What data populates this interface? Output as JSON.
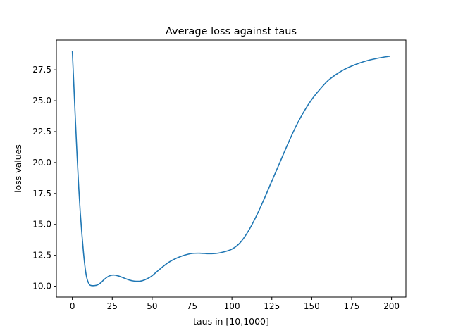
{
  "chart_data": {
    "type": "line",
    "title": "Average loss against taus",
    "xlabel": "taus in [10,1000]",
    "ylabel": "loss values",
    "xlim": [
      -10,
      209
    ],
    "ylim": [
      9.12,
      29.9
    ],
    "xticks": [
      0,
      25,
      50,
      75,
      100,
      125,
      150,
      175,
      200
    ],
    "xtick_labels": [
      "0",
      "25",
      "50",
      "75",
      "100",
      "125",
      "150",
      "175",
      "200"
    ],
    "yticks": [
      10.0,
      12.5,
      15.0,
      17.5,
      20.0,
      22.5,
      25.0,
      27.5
    ],
    "ytick_labels": [
      "10.0",
      "12.5",
      "15.0",
      "17.5",
      "20.0",
      "22.5",
      "25.0",
      "27.5"
    ],
    "grid": false,
    "line_color": "#1f77b4",
    "series": [
      {
        "x": [
          0,
          1,
          2,
          3,
          4,
          5,
          6,
          7,
          8,
          9,
          10,
          11,
          12,
          13,
          14,
          15,
          16,
          17,
          18,
          20,
          22,
          24,
          26,
          28,
          30,
          32,
          34,
          36,
          38,
          40,
          42,
          44,
          46,
          48,
          50,
          55,
          60,
          65,
          70,
          75,
          80,
          85,
          90,
          95,
          100,
          105,
          110,
          115,
          120,
          125,
          130,
          135,
          140,
          145,
          150,
          155,
          160,
          165,
          170,
          175,
          180,
          185,
          190,
          195,
          199
        ],
        "y": [
          29.0,
          26.1,
          23.2,
          20.5,
          18.0,
          15.9,
          14.2,
          12.7,
          11.5,
          10.7,
          10.3,
          10.1,
          10.05,
          10.04,
          10.05,
          10.07,
          10.12,
          10.2,
          10.3,
          10.55,
          10.75,
          10.87,
          10.9,
          10.86,
          10.78,
          10.68,
          10.58,
          10.49,
          10.43,
          10.4,
          10.4,
          10.45,
          10.55,
          10.68,
          10.85,
          11.4,
          11.9,
          12.25,
          12.5,
          12.65,
          12.67,
          12.63,
          12.65,
          12.78,
          13.0,
          13.5,
          14.4,
          15.6,
          17.0,
          18.5,
          20.0,
          21.5,
          22.9,
          24.1,
          25.1,
          25.9,
          26.6,
          27.1,
          27.5,
          27.8,
          28.05,
          28.25,
          28.4,
          28.52,
          28.6
        ]
      }
    ]
  }
}
